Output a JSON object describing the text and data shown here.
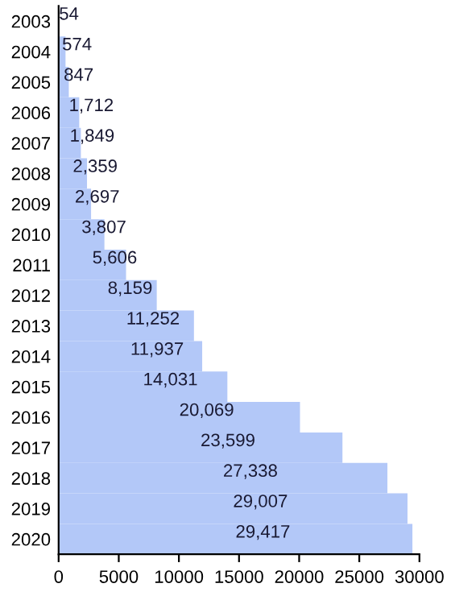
{
  "chart_data": {
    "type": "bar",
    "orientation": "horizontal",
    "categories": [
      "2003",
      "2004",
      "2005",
      "2006",
      "2007",
      "2008",
      "2009",
      "2010",
      "2011",
      "2012",
      "2013",
      "2014",
      "2015",
      "2016",
      "2017",
      "2018",
      "2019",
      "2020"
    ],
    "values": [
      54,
      574,
      847,
      1712,
      1849,
      2359,
      2697,
      3807,
      5606,
      8159,
      11252,
      11937,
      14031,
      20069,
      23599,
      27338,
      29007,
      29417
    ],
    "value_labels": [
      "54",
      "574",
      "847",
      "1,712",
      "1,849",
      "2,359",
      "2,697",
      "3,807",
      "5,606",
      "8,159",
      "11,252",
      "11,937",
      "14,031",
      "20,069",
      "23,599",
      "27,338",
      "29,007",
      "29,417"
    ],
    "color": "#b3c8f8",
    "xlim": [
      0,
      30000
    ],
    "xticks": [
      0,
      5000,
      10000,
      15000,
      20000,
      25000,
      30000
    ],
    "grid": false,
    "legend": false
  }
}
